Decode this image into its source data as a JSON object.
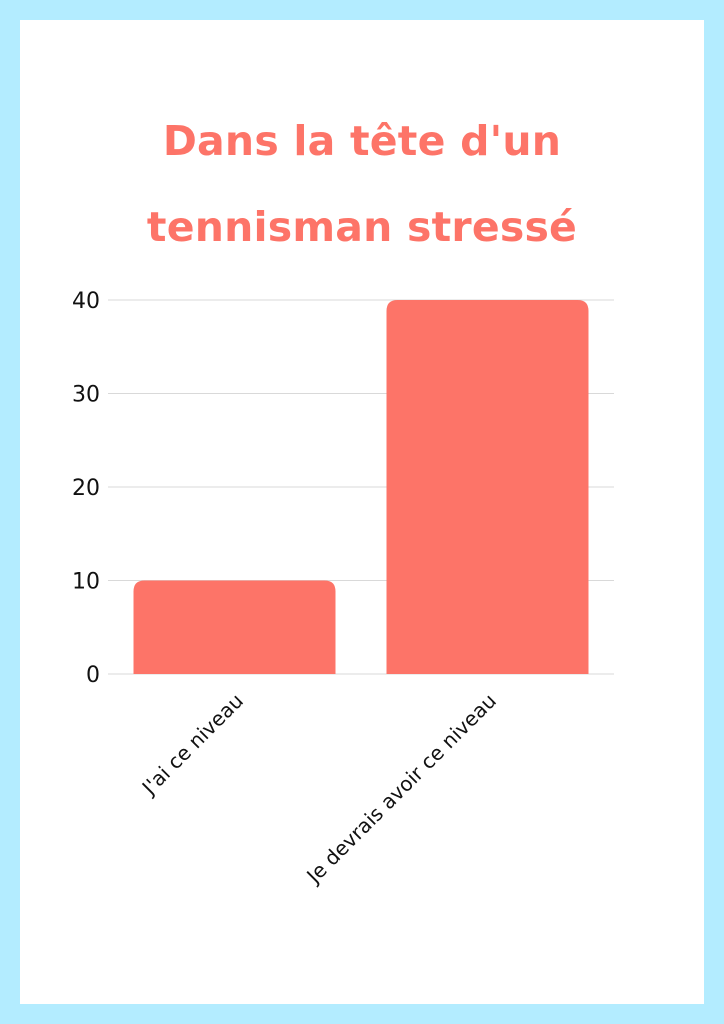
{
  "title_lines": [
    "Dans la tête d'un",
    "tennisman stressé"
  ],
  "colors": {
    "frame": "#b3ecff",
    "card": "#ffffff",
    "accent": "#fd7468",
    "grid": "#d9d9d9",
    "text": "#111111"
  },
  "chart_data": {
    "type": "bar",
    "title": "Dans la tête d'un tennisman stressé",
    "categories": [
      "J'ai ce niveau",
      "Je devrais avoir ce niveau"
    ],
    "values": [
      10,
      40
    ],
    "ylim": [
      0,
      40
    ],
    "yticks": [
      0,
      10,
      20,
      30,
      40
    ],
    "ytick_labels": [
      "0",
      "10",
      "20",
      "30",
      "40"
    ],
    "xlabel": "",
    "ylabel": "",
    "grid": true,
    "legend": "none"
  }
}
